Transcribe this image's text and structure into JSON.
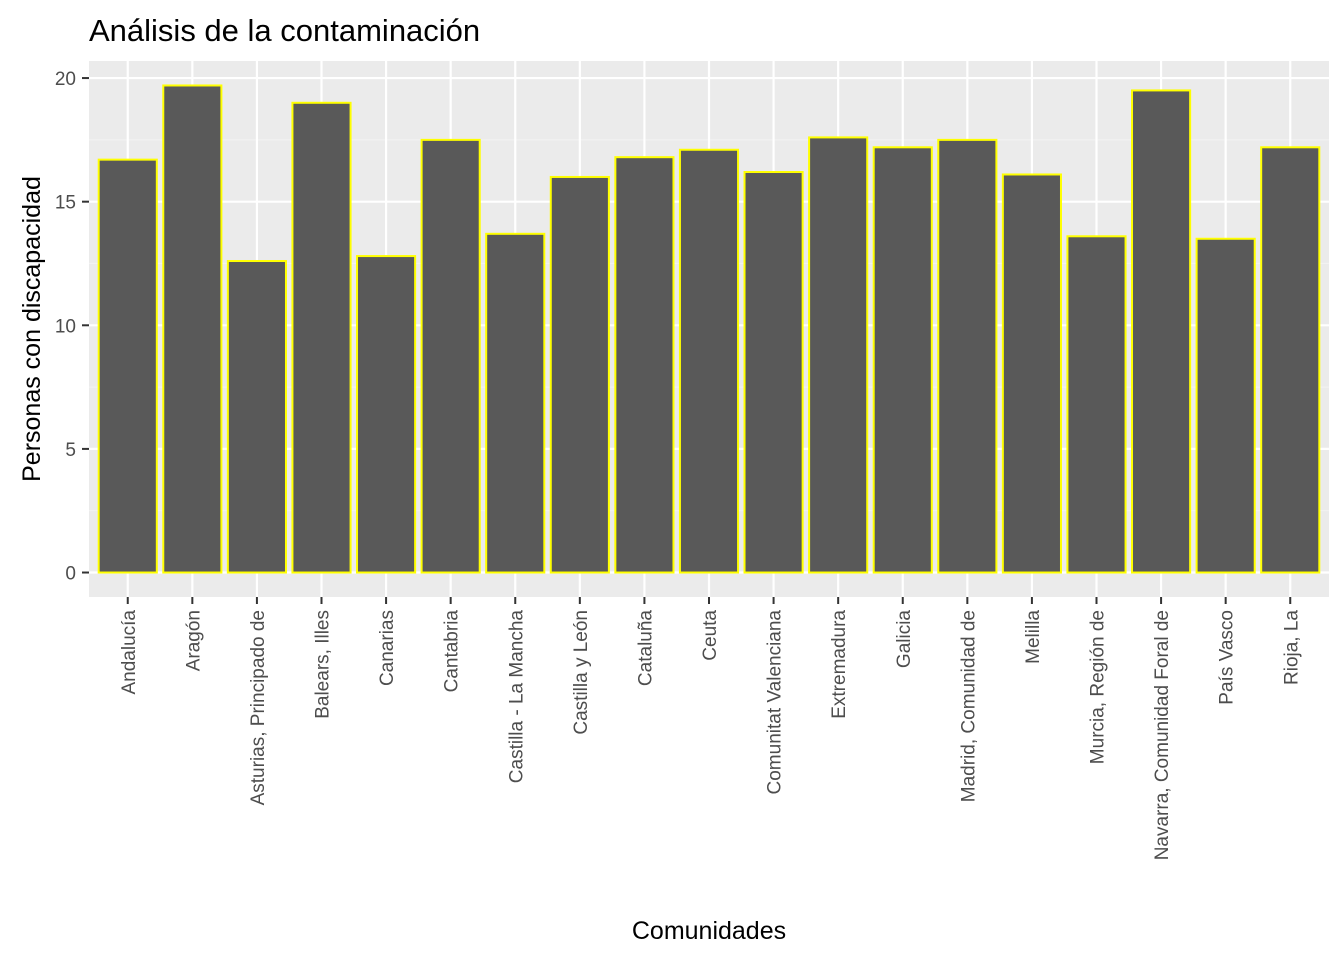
{
  "chart_data": {
    "type": "bar",
    "title": "Análisis de la contaminación",
    "xlabel": "Comunidades",
    "ylabel": "Personas con discapacidad",
    "categories": [
      "Andalucía",
      "Aragón",
      "Asturias, Principado de",
      "Balears, Illes",
      "Canarias",
      "Cantabria",
      "Castilla - La Mancha",
      "Castilla y León",
      "Cataluña",
      "Ceuta",
      "Comunitat Valenciana",
      "Extremadura",
      "Galicia",
      "Madrid, Comunidad de",
      "Melilla",
      "Murcia, Región de",
      "Navarra, Comunidad Foral de",
      "País Vasco",
      "Rioja, La"
    ],
    "values": [
      16.7,
      19.7,
      12.6,
      19.0,
      12.8,
      17.5,
      13.7,
      16.0,
      16.8,
      17.1,
      16.2,
      17.6,
      17.2,
      17.5,
      16.1,
      13.6,
      19.5,
      13.5,
      17.2
    ],
    "ylim": [
      -0.99,
      20.69
    ],
    "yticks": [
      0,
      5,
      10,
      15,
      20
    ],
    "ytick_labels": [
      "0",
      "5",
      "10",
      "15",
      "20"
    ],
    "grid": true,
    "legend": "none",
    "colors": {
      "bar_fill": "#595959",
      "bar_outline": "#ffff00",
      "panel_background": "#ebebeb",
      "grid_major": "#ffffff",
      "grid_minor": "#f2f2f2"
    }
  }
}
